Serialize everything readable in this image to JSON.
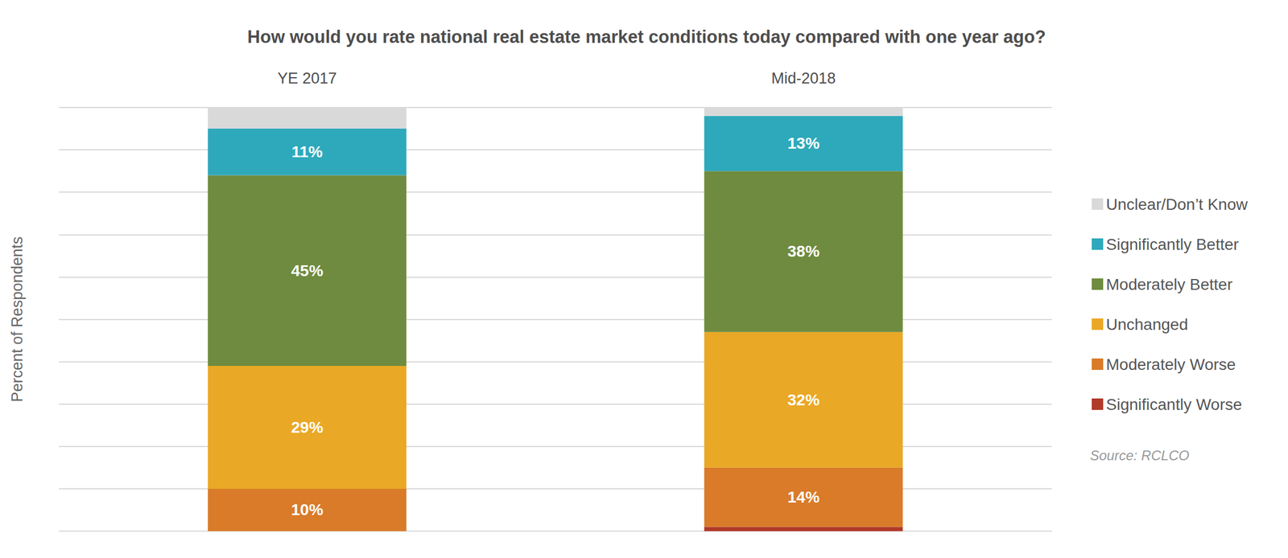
{
  "chart_data": {
    "type": "bar",
    "title": "How would you rate national real estate market conditions today compared with one year ago?",
    "y_label": "Percent of Respondents",
    "source": "Source: RCLCO",
    "categories": [
      "YE 2017",
      "Mid-2018"
    ],
    "stacked": true,
    "data_labels": true,
    "grid": true,
    "tick_labels": "x",
    "legend": "right",
    "ylim": [
      0,
      100
    ],
    "yticks": [
      0,
      10,
      20,
      30,
      40,
      50,
      60,
      70,
      80,
      90,
      100
    ],
    "series": [
      {
        "name": "Unclear/Don’t Know",
        "color": "#d9d9d9",
        "values": [
          5,
          2
        ],
        "value_labels": [
          null,
          null
        ]
      },
      {
        "name": "Significantly Better",
        "color": "#2ea9bb",
        "values": [
          11,
          13
        ],
        "value_labels": [
          "11%",
          "13%"
        ]
      },
      {
        "name": "Moderately Better",
        "color": "#6f8b3f",
        "values": [
          45,
          38
        ],
        "value_labels": [
          "45%",
          "38%"
        ]
      },
      {
        "name": "Unchanged",
        "color": "#e9a825",
        "values": [
          29,
          32
        ],
        "value_labels": [
          "29%",
          "32%"
        ]
      },
      {
        "name": "Moderately Worse",
        "color": "#d97b29",
        "values": [
          10,
          14
        ],
        "value_labels": [
          "10%",
          "14%"
        ]
      },
      {
        "name": "Significantly Worse",
        "color": "#b03a2a",
        "values": [
          0,
          1
        ],
        "value_labels": [
          null,
          null
        ]
      }
    ]
  }
}
